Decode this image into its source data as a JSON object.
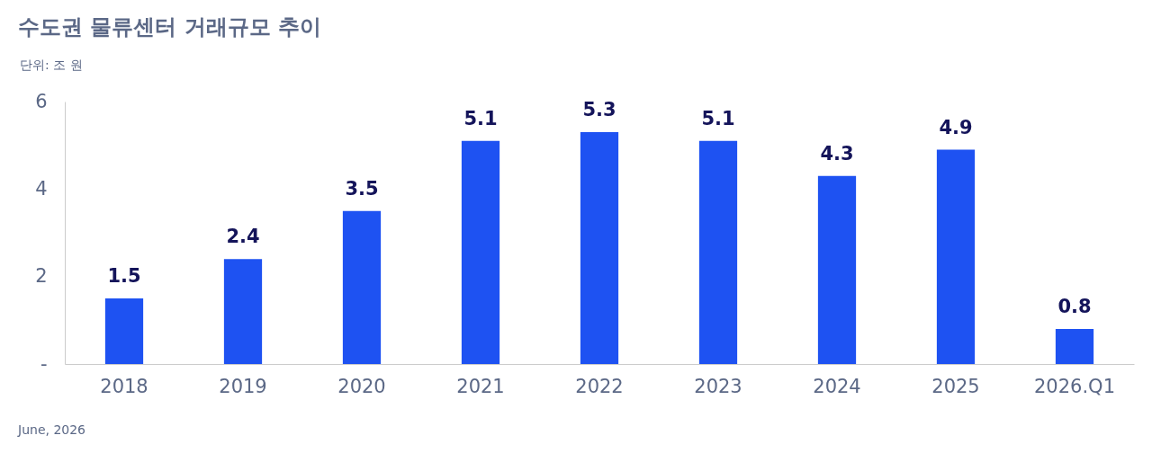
{
  "chart_data": {
    "type": "bar",
    "title": "수도권 물류센터 거래규모 추이",
    "subtitle": "단위: 조 원",
    "categories": [
      "2018",
      "2019",
      "2020",
      "2021",
      "2022",
      "2023",
      "2024",
      "2025",
      "2026.Q1"
    ],
    "values": [
      1.5,
      2.4,
      3.5,
      5.1,
      5.3,
      5.1,
      4.3,
      4.9,
      0.8
    ],
    "color": "#1e52f2",
    "ylim": [
      0,
      6
    ],
    "yticks": [
      {
        "value": 0,
        "label": "-"
      },
      2,
      4,
      6
    ],
    "grid": false,
    "data_labels": true,
    "annotations": [
      "June, 2026"
    ]
  }
}
